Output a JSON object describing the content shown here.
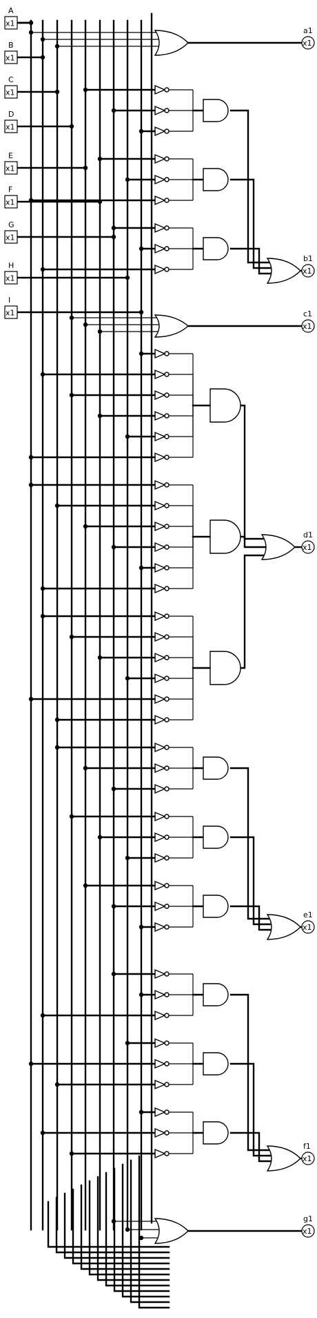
{
  "inputs": [
    {
      "name": "A",
      "label": "x1"
    },
    {
      "name": "B",
      "label": "x1"
    },
    {
      "name": "C",
      "label": "x1"
    },
    {
      "name": "D",
      "label": "x1"
    },
    {
      "name": "E",
      "label": "x1"
    },
    {
      "name": "F",
      "label": "x1"
    },
    {
      "name": "G",
      "label": "x1"
    },
    {
      "name": "H",
      "label": "x1"
    },
    {
      "name": "I",
      "label": "x1"
    }
  ],
  "outputs": [
    {
      "name": "a1",
      "label": "x1"
    },
    {
      "name": "b1",
      "label": "x1"
    },
    {
      "name": "c1",
      "label": "x1"
    },
    {
      "name": "d1",
      "label": "x1"
    },
    {
      "name": "e1",
      "label": "x1"
    },
    {
      "name": "f1",
      "label": "x1"
    },
    {
      "name": "g1",
      "label": "x1"
    }
  ]
}
